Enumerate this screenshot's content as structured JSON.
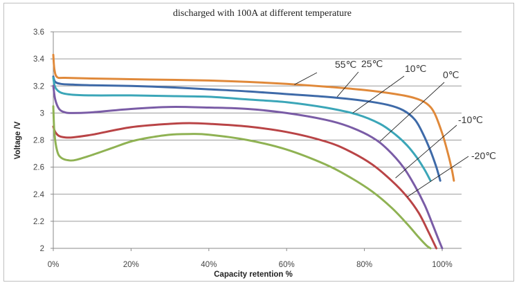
{
  "chart_data": {
    "type": "line",
    "title": "discharged with 100A at different temperature",
    "xlabel": "Capacity retention %",
    "ylabel": "Voltage /V",
    "xlim": [
      0,
      105
    ],
    "ylim": [
      2,
      3.6
    ],
    "x_ticks": [
      0,
      20,
      40,
      60,
      80,
      100
    ],
    "x_tick_labels": [
      "0%",
      "20%",
      "40%",
      "60%",
      "80%",
      "100%"
    ],
    "y_ticks": [
      2,
      2.2,
      2.4,
      2.6,
      2.8,
      3,
      3.2,
      3.4,
      3.6
    ],
    "y_tick_labels": [
      "2",
      "2.2",
      "2.4",
      "2.6",
      "2.8",
      "3",
      "3.2",
      "3.4",
      "3.6"
    ],
    "grid": "horizontal",
    "legend": "callout labels with leader lines (upper right)",
    "series": [
      {
        "name": "55℃",
        "color": "#e0893a",
        "x": [
          0,
          0.3,
          1,
          3,
          10,
          20,
          30,
          40,
          50,
          60,
          70,
          80,
          88,
          93,
          96,
          98,
          100,
          101.5,
          102.5,
          103
        ],
        "y": [
          3.43,
          3.32,
          3.265,
          3.26,
          3.255,
          3.25,
          3.245,
          3.24,
          3.23,
          3.215,
          3.195,
          3.17,
          3.14,
          3.11,
          3.07,
          3.0,
          2.85,
          2.7,
          2.58,
          2.5
        ]
      },
      {
        "name": "25℃",
        "color": "#3e6aa8",
        "x": [
          0,
          0.5,
          2,
          5,
          10,
          20,
          30,
          40,
          50,
          60,
          70,
          80,
          86,
          90,
          93,
          95,
          97,
          98.5,
          99.5
        ],
        "y": [
          3.27,
          3.23,
          3.215,
          3.21,
          3.205,
          3.2,
          3.19,
          3.175,
          3.16,
          3.14,
          3.12,
          3.09,
          3.06,
          3.02,
          2.95,
          2.85,
          2.72,
          2.6,
          2.5
        ]
      },
      {
        "name": "10℃",
        "color": "#3ba6b8",
        "x": [
          0,
          0.5,
          2,
          5,
          10,
          20,
          30,
          40,
          50,
          60,
          70,
          78,
          84,
          88,
          91,
          93.5,
          95.5,
          97
        ],
        "y": [
          3.26,
          3.19,
          3.15,
          3.135,
          3.13,
          3.13,
          3.125,
          3.12,
          3.1,
          3.08,
          3.04,
          2.99,
          2.92,
          2.84,
          2.76,
          2.67,
          2.58,
          2.5
        ]
      },
      {
        "name": "0℃",
        "color": "#7a5ca6",
        "x": [
          0,
          0.5,
          1.5,
          3,
          5,
          10,
          20,
          30,
          40,
          50,
          60,
          70,
          76,
          82,
          86,
          90,
          93,
          95.5,
          97.5,
          99,
          100
        ],
        "y": [
          3.2,
          3.1,
          3.03,
          3.005,
          3.0,
          3.005,
          3.03,
          3.045,
          3.04,
          3.03,
          3.0,
          2.95,
          2.9,
          2.82,
          2.73,
          2.6,
          2.46,
          2.32,
          2.18,
          2.07,
          2.0
        ]
      },
      {
        "name": "-10℃",
        "color": "#b94446",
        "x": [
          0,
          0.5,
          1.5,
          3,
          5,
          10,
          20,
          30,
          35,
          40,
          50,
          60,
          70,
          76,
          82,
          87,
          91,
          94,
          96.5,
          98.5
        ],
        "y": [
          2.9,
          2.86,
          2.83,
          2.82,
          2.82,
          2.84,
          2.895,
          2.92,
          2.925,
          2.92,
          2.9,
          2.86,
          2.79,
          2.72,
          2.62,
          2.5,
          2.38,
          2.26,
          2.12,
          2.0
        ]
      },
      {
        "name": "-20℃",
        "color": "#8fb253",
        "x": [
          0,
          0.3,
          1,
          2,
          4,
          6,
          10,
          15,
          20,
          25,
          30,
          35,
          40,
          50,
          60,
          70,
          76,
          82,
          87,
          91,
          94,
          96,
          97
        ],
        "y": [
          3.05,
          2.85,
          2.72,
          2.67,
          2.65,
          2.655,
          2.69,
          2.74,
          2.79,
          2.82,
          2.84,
          2.845,
          2.84,
          2.8,
          2.73,
          2.62,
          2.53,
          2.42,
          2.3,
          2.18,
          2.08,
          2.02,
          2.0
        ]
      }
    ],
    "annotations": [
      {
        "text": "55℃",
        "series": "55℃",
        "point": [
          62,
          3.21
        ]
      },
      {
        "text": "25℃",
        "series": "25℃",
        "point": [
          73,
          3.12
        ]
      },
      {
        "text": "10℃",
        "series": "10℃",
        "point": [
          77,
          3.0
        ]
      },
      {
        "text": "0℃",
        "series": "0℃",
        "point": [
          84,
          2.79
        ]
      },
      {
        "text": "-10℃",
        "series": "-10℃",
        "point": [
          88,
          2.52
        ]
      },
      {
        "text": "-20℃",
        "series": "-20℃",
        "point": [
          91,
          2.38
        ]
      }
    ]
  }
}
